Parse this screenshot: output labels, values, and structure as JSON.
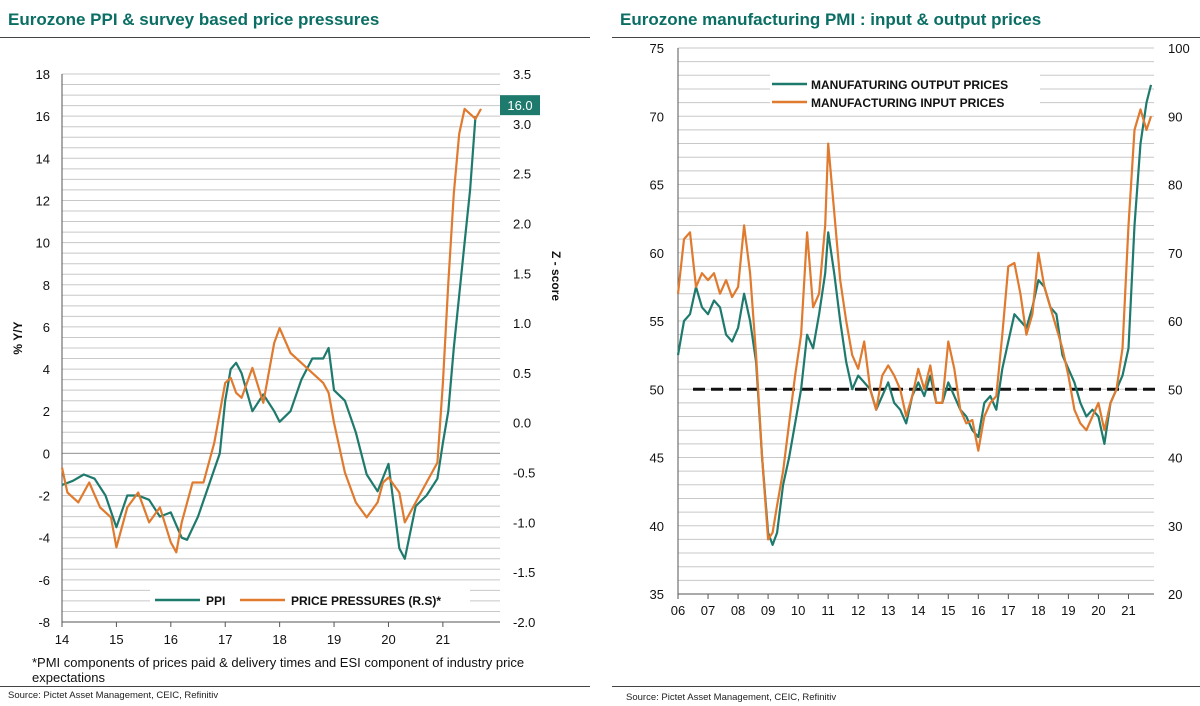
{
  "colors": {
    "green": "#1f7a6e",
    "orange": "#e07a2e",
    "grid": "#c8c8c8",
    "title": "#0a6e64",
    "dashed": "#111111"
  },
  "left": {
    "title": "Eurozone PPI & survey based price pressures",
    "footnote": "*PMI components of prices paid & delivery times and ESI component of industry price expectations",
    "source": "Source: Pictet Asset Management, CEIC, Refinitiv"
  },
  "right": {
    "title": "Eurozone manufacturing PMI : input & output prices",
    "source": "Source: Pictet Asset Management, CEIC, Refinitiv"
  },
  "chart_data": [
    {
      "type": "line",
      "title": "Eurozone PPI & survey based price pressures",
      "ylabel": "% Y/Y",
      "y2label": "Z - score",
      "ylim": [
        -8,
        18
      ],
      "yticks": [
        -8,
        -6,
        -4,
        -2,
        0,
        2,
        4,
        6,
        8,
        10,
        12,
        14,
        16,
        18
      ],
      "y2lim": [
        -2.0,
        3.5
      ],
      "y2ticks": [
        "-2.0",
        "-1.5",
        "-1.0",
        "-0.5",
        "0.0",
        "0.5",
        "1.0",
        "1.5",
        "2.0",
        "2.5",
        "3.0",
        "3.5"
      ],
      "xlim": [
        14,
        22.05
      ],
      "xticks": [
        "14",
        "15",
        "16",
        "17",
        "18",
        "19",
        "20",
        "21"
      ],
      "grid": true,
      "legend": "bottom-center",
      "value_label": "16.0",
      "series": [
        {
          "name": "PPI",
          "axis": "left",
          "color": "#1f7a6e",
          "x": [
            14.0,
            14.2,
            14.4,
            14.6,
            14.8,
            15.0,
            15.2,
            15.4,
            15.6,
            15.8,
            16.0,
            16.2,
            16.3,
            16.5,
            16.7,
            16.9,
            17.0,
            17.1,
            17.2,
            17.3,
            17.5,
            17.7,
            17.9,
            18.0,
            18.2,
            18.4,
            18.6,
            18.8,
            18.9,
            19.0,
            19.2,
            19.4,
            19.6,
            19.8,
            20.0,
            20.2,
            20.3,
            20.5,
            20.7,
            20.9,
            21.0,
            21.1,
            21.2,
            21.3,
            21.4,
            21.5,
            21.6
          ],
          "y": [
            -1.5,
            -1.3,
            -1.0,
            -1.2,
            -2.0,
            -3.5,
            -2.0,
            -2.0,
            -2.2,
            -3.0,
            -2.8,
            -4.0,
            -4.1,
            -3.0,
            -1.5,
            0.0,
            2.5,
            4.0,
            4.3,
            3.8,
            2.0,
            2.8,
            2.0,
            1.5,
            2.0,
            3.5,
            4.5,
            4.5,
            5.0,
            3.0,
            2.5,
            1.0,
            -1.0,
            -1.8,
            -0.5,
            -4.5,
            -5.0,
            -2.5,
            -2.0,
            -1.2,
            0.5,
            2.0,
            5.0,
            7.5,
            10.0,
            12.5,
            16.0
          ]
        },
        {
          "name": "PRICE PRESSURES (R.S)*",
          "axis": "right",
          "color": "#e07a2e",
          "x": [
            14.0,
            14.1,
            14.3,
            14.5,
            14.7,
            14.9,
            15.0,
            15.2,
            15.4,
            15.6,
            15.8,
            16.0,
            16.1,
            16.2,
            16.4,
            16.6,
            16.8,
            17.0,
            17.1,
            17.2,
            17.3,
            17.5,
            17.7,
            17.9,
            18.0,
            18.2,
            18.4,
            18.6,
            18.8,
            18.9,
            19.0,
            19.2,
            19.4,
            19.6,
            19.8,
            19.9,
            20.0,
            20.2,
            20.3,
            20.5,
            20.7,
            20.9,
            21.0,
            21.1,
            21.2,
            21.3,
            21.4,
            21.5,
            21.6,
            21.7
          ],
          "y": [
            -0.45,
            -0.7,
            -0.8,
            -0.6,
            -0.85,
            -0.95,
            -1.25,
            -0.85,
            -0.7,
            -1.0,
            -0.85,
            -1.2,
            -1.3,
            -1.0,
            -0.6,
            -0.6,
            -0.2,
            0.4,
            0.45,
            0.3,
            0.25,
            0.55,
            0.2,
            0.8,
            0.95,
            0.7,
            0.6,
            0.5,
            0.4,
            0.3,
            0.0,
            -0.5,
            -0.8,
            -0.95,
            -0.8,
            -0.6,
            -0.55,
            -0.7,
            -1.0,
            -0.8,
            -0.6,
            -0.4,
            0.4,
            1.4,
            2.3,
            2.9,
            3.15,
            3.1,
            3.05,
            3.15
          ]
        }
      ]
    },
    {
      "type": "line",
      "title": "Eurozone manufacturing PMI : input & output prices",
      "ylim": [
        35,
        75
      ],
      "yticks": [
        35,
        40,
        45,
        50,
        55,
        60,
        65,
        70,
        75
      ],
      "y2lim": [
        20,
        100
      ],
      "y2ticks": [
        20,
        30,
        40,
        50,
        60,
        70,
        80,
        90,
        100
      ],
      "xlim": [
        6,
        21.85
      ],
      "xticks": [
        "06",
        "07",
        "08",
        "09",
        "10",
        "11",
        "12",
        "13",
        "14",
        "15",
        "16",
        "17",
        "18",
        "19",
        "20",
        "21"
      ],
      "grid": true,
      "legend": "top-left",
      "reference_line": 50,
      "series": [
        {
          "name": "MANUFATURING OUTPUT PRICES",
          "axis": "left",
          "color": "#1f7a6e",
          "x": [
            6.0,
            6.2,
            6.4,
            6.6,
            6.8,
            7.0,
            7.2,
            7.4,
            7.6,
            7.8,
            8.0,
            8.2,
            8.4,
            8.6,
            8.8,
            9.0,
            9.15,
            9.3,
            9.5,
            9.7,
            9.9,
            10.1,
            10.3,
            10.5,
            10.7,
            10.9,
            11.0,
            11.2,
            11.4,
            11.6,
            11.8,
            12.0,
            12.2,
            12.4,
            12.6,
            12.8,
            13.0,
            13.2,
            13.4,
            13.6,
            13.8,
            14.0,
            14.2,
            14.4,
            14.6,
            14.8,
            15.0,
            15.2,
            15.4,
            15.6,
            15.8,
            16.0,
            16.2,
            16.4,
            16.6,
            16.8,
            17.0,
            17.2,
            17.4,
            17.6,
            17.8,
            18.0,
            18.2,
            18.4,
            18.6,
            18.8,
            19.0,
            19.2,
            19.4,
            19.6,
            19.8,
            20.0,
            20.2,
            20.4,
            20.6,
            20.8,
            21.0,
            21.2,
            21.4,
            21.6,
            21.75
          ],
          "y": [
            52.5,
            55.0,
            55.5,
            57.5,
            56.0,
            55.5,
            56.5,
            56.0,
            54.0,
            53.5,
            54.5,
            57.0,
            55.0,
            52.0,
            45.0,
            39.5,
            38.6,
            39.5,
            43.0,
            45.0,
            47.5,
            50.0,
            54.0,
            53.0,
            55.5,
            58.5,
            61.5,
            58.5,
            55.0,
            52.0,
            50.0,
            51.0,
            50.5,
            50.0,
            48.5,
            49.5,
            50.5,
            49.0,
            48.5,
            47.5,
            49.5,
            50.5,
            49.5,
            51.0,
            49.0,
            49.0,
            50.5,
            49.5,
            48.5,
            48.0,
            47.0,
            46.5,
            49.0,
            49.5,
            48.5,
            51.5,
            53.5,
            55.5,
            55.0,
            54.5,
            56.0,
            58.0,
            57.5,
            56.0,
            55.5,
            52.5,
            51.5,
            50.5,
            49.0,
            48.0,
            48.5,
            48.0,
            46.0,
            49.0,
            50.0,
            51.0,
            53.0,
            62.0,
            68.0,
            71.0,
            72.3
          ]
        },
        {
          "name": "MANUFACTURING INPUT PRICES",
          "axis": "right",
          "color": "#e07a2e",
          "x": [
            6.0,
            6.2,
            6.4,
            6.6,
            6.8,
            7.0,
            7.2,
            7.4,
            7.6,
            7.8,
            8.0,
            8.2,
            8.4,
            8.6,
            8.8,
            9.0,
            9.15,
            9.3,
            9.5,
            9.7,
            9.9,
            10.1,
            10.3,
            10.5,
            10.7,
            10.9,
            11.0,
            11.2,
            11.4,
            11.6,
            11.8,
            12.0,
            12.2,
            12.4,
            12.6,
            12.8,
            13.0,
            13.2,
            13.4,
            13.6,
            13.8,
            14.0,
            14.2,
            14.4,
            14.6,
            14.8,
            15.0,
            15.2,
            15.4,
            15.6,
            15.8,
            16.0,
            16.2,
            16.4,
            16.6,
            16.8,
            17.0,
            17.2,
            17.4,
            17.6,
            17.8,
            18.0,
            18.2,
            18.4,
            18.6,
            18.8,
            19.0,
            19.2,
            19.4,
            19.6,
            19.8,
            20.0,
            20.2,
            20.4,
            20.6,
            20.8,
            21.0,
            21.2,
            21.4,
            21.6,
            21.75
          ],
          "y": [
            64.0,
            72.0,
            73.0,
            65.0,
            67.0,
            66.0,
            67.0,
            64.0,
            66.0,
            63.5,
            65.0,
            74.0,
            67.0,
            55.0,
            40.0,
            28.0,
            29.0,
            33.0,
            38.0,
            45.0,
            52.0,
            58.0,
            73.0,
            62.0,
            64.0,
            74.0,
            86.0,
            76.0,
            66.0,
            60.0,
            55.0,
            53.0,
            57.0,
            50.0,
            47.0,
            52.0,
            53.5,
            52.0,
            50.0,
            46.0,
            49.0,
            53.0,
            50.0,
            53.5,
            48.0,
            48.0,
            57.0,
            53.0,
            47.0,
            45.0,
            45.5,
            41.0,
            46.0,
            48.0,
            49.0,
            58.0,
            68.0,
            68.5,
            64.0,
            58.0,
            61.0,
            70.0,
            65.0,
            62.0,
            59.0,
            56.0,
            52.0,
            47.0,
            45.0,
            44.0,
            46.0,
            48.0,
            44.0,
            48.0,
            50.0,
            56.0,
            74.0,
            88.0,
            91.0,
            88.0,
            90.0
          ]
        }
      ]
    }
  ]
}
